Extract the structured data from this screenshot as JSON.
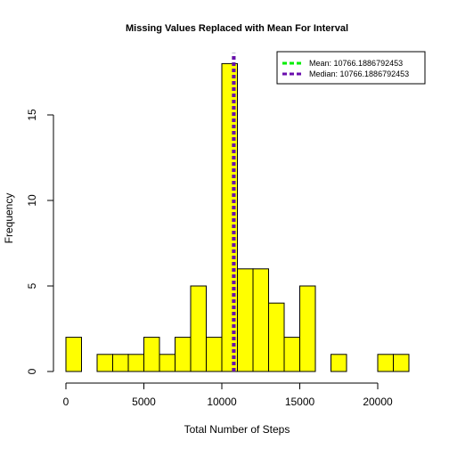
{
  "chart_data": {
    "type": "histogram",
    "title": "Missing Values Replaced with Mean For Interval",
    "xlabel": "Total Number of Steps",
    "ylabel": "Frequency",
    "xlim": [
      0,
      22500
    ],
    "ylim": [
      0,
      18.5
    ],
    "bin_width": 1000,
    "bins": [
      {
        "start": 0,
        "end": 1000,
        "count": 2
      },
      {
        "start": 1000,
        "end": 2000,
        "count": 0
      },
      {
        "start": 2000,
        "end": 3000,
        "count": 1
      },
      {
        "start": 3000,
        "end": 4000,
        "count": 1
      },
      {
        "start": 4000,
        "end": 5000,
        "count": 1
      },
      {
        "start": 5000,
        "end": 6000,
        "count": 2
      },
      {
        "start": 6000,
        "end": 7000,
        "count": 1
      },
      {
        "start": 7000,
        "end": 8000,
        "count": 2
      },
      {
        "start": 8000,
        "end": 9000,
        "count": 5
      },
      {
        "start": 9000,
        "end": 10000,
        "count": 2
      },
      {
        "start": 10000,
        "end": 11000,
        "count": 18
      },
      {
        "start": 11000,
        "end": 12000,
        "count": 6
      },
      {
        "start": 12000,
        "end": 13000,
        "count": 6
      },
      {
        "start": 13000,
        "end": 14000,
        "count": 4
      },
      {
        "start": 14000,
        "end": 15000,
        "count": 2
      },
      {
        "start": 15000,
        "end": 16000,
        "count": 5
      },
      {
        "start": 16000,
        "end": 17000,
        "count": 0
      },
      {
        "start": 17000,
        "end": 18000,
        "count": 1
      },
      {
        "start": 18000,
        "end": 19000,
        "count": 0
      },
      {
        "start": 19000,
        "end": 20000,
        "count": 0
      },
      {
        "start": 20000,
        "end": 21000,
        "count": 1
      },
      {
        "start": 21000,
        "end": 22000,
        "count": 1
      }
    ],
    "x_ticks": [
      0,
      5000,
      10000,
      15000,
      20000
    ],
    "y_ticks": [
      0,
      5,
      10,
      15
    ],
    "bar_color": "#FFFF00",
    "bar_border_color": "#000000",
    "mean_line": {
      "value": 10766.1886792453,
      "color": "#00EE00",
      "style": "dashed"
    },
    "median_line": {
      "value": 10766.1886792453,
      "color": "#6A0DAD",
      "style": "dashed"
    },
    "legend": {
      "placement": "top-right",
      "entries": [
        {
          "label": "Mean:  10766.1886792453",
          "color": "#00EE00"
        },
        {
          "label": "Median:  10766.1886792453",
          "color": "#6A0DAD"
        }
      ]
    },
    "grid": false
  }
}
